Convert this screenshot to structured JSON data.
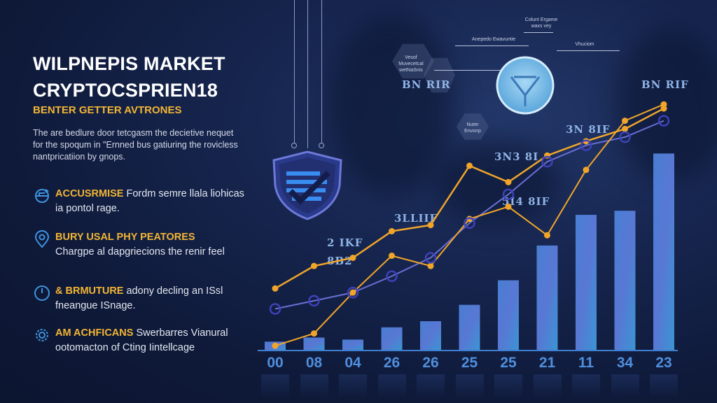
{
  "header": {
    "title_line1": "WILPNEPIS MARKET",
    "title_line2": "CRYPTOCSPRIEN18",
    "subheading": "BENTER GETTER AVTRONES",
    "intro": "The are bedlure door tetcgasm the decietive nequet for the spoqum in \"Ernned bus gatiuring the rovicless nantpricatiion by gnops."
  },
  "features": [
    {
      "icon": "refresh-globe-icon",
      "highlight": "ACCUSRMISE",
      "text": " Fordm semre llala liohicas ia pontol rage."
    },
    {
      "icon": "location-pin-icon",
      "highlight": "BURY USAL PHY PEATORES",
      "text": " Chargpe al dapgriecions the renir feel"
    },
    {
      "icon": "power-icon",
      "highlight": "& BRMUTURE",
      "text": " adony decling an ISsl fneangue ISnage."
    },
    {
      "icon": "gear-cluster-icon",
      "highlight": "AM ACHFICANS",
      "text": " Swerbarres Vianural ootomacton of Cting Iintellcage"
    }
  ],
  "diagram": {
    "hex_labels": [
      "Vesof Muvecetcal wetNaSnis",
      "Nuter Envonp"
    ],
    "arrow_labels": [
      "Anepedo Ewavuntie",
      "Colunt Ergame waxs vey",
      "Vhuciom"
    ],
    "glyph_labels": [
      "BN RIR",
      "BN RIF",
      "3N 8IF",
      "3N3 8I",
      "3LLIIF",
      "5I4 8IF",
      "2 IKF",
      "8B2"
    ]
  },
  "chart_data": {
    "type": "bar",
    "title": "WILPNEPIS MARKET CRYPTOCSPRIEN18",
    "categories": [
      "00",
      "08",
      "04",
      "26",
      "26",
      "25",
      "25",
      "21",
      "11",
      "34",
      "23"
    ],
    "series": [
      {
        "name": "bars",
        "type": "bar",
        "values": [
          4,
          6,
          5,
          11,
          14,
          22,
          34,
          51,
          66,
          68,
          96
        ]
      },
      {
        "name": "orange-line-1",
        "type": "line",
        "values": [
          30,
          41,
          45,
          58,
          61,
          90,
          82,
          95,
          102,
          108,
          118
        ]
      },
      {
        "name": "orange-line-2",
        "type": "line",
        "values": [
          2,
          8,
          28,
          46,
          41,
          64,
          70,
          56,
          88,
          112,
          120
        ]
      },
      {
        "name": "purple-line",
        "type": "line",
        "values": [
          20,
          24,
          28,
          36,
          45,
          62,
          76,
          92,
          100,
          104,
          112
        ]
      }
    ],
    "xlabel": "",
    "ylabel": "",
    "ylim": [
      0,
      130
    ],
    "grid": false,
    "legend": "none",
    "colors": {
      "bar": "#4a7fd8",
      "line_orange": "#f0a52a",
      "line_purple": "#6a6fd6",
      "axis": "#3f7fd0",
      "label": "#4f8fdd"
    }
  }
}
